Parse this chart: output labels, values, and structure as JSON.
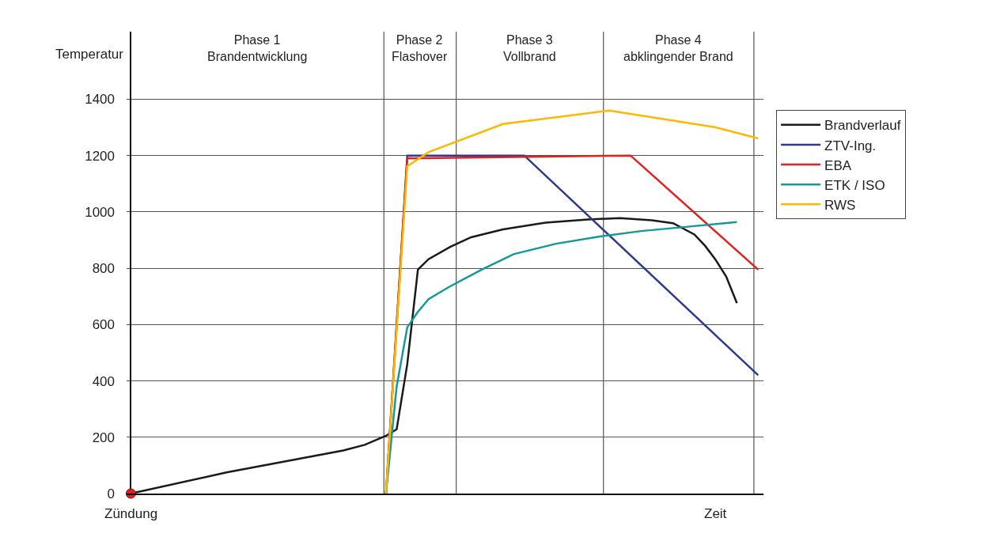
{
  "chart_data": {
    "type": "line",
    "ylabel": "Temperatur",
    "xlabel": "Zeit",
    "annotations": [
      "Phase 1\nBrandentwicklung",
      "Phase 2\nFlashover",
      "Phase 3\nVollbrand",
      "Phase 4\nabklingender Brand",
      "Zündung"
    ],
    "categories": [
      null,
      null,
      null,
      null,
      null,
      null,
      null,
      null,
      null,
      null,
      null,
      null,
      null,
      null,
      null,
      null,
      null,
      null,
      null,
      null,
      null,
      null,
      null,
      null,
      null,
      null,
      null,
      null,
      null,
      null,
      null,
      null,
      null,
      null,
      null,
      null,
      null,
      null,
      null,
      null,
      null,
      null,
      null,
      null,
      null,
      null,
      null,
      null,
      null,
      null,
      null,
      null,
      null,
      null,
      null,
      null,
      null,
      null,
      null,
      null
    ],
    "ylim": [
      0,
      1640
    ],
    "yticks": [
      0,
      200,
      400,
      600,
      800,
      1000,
      1200,
      1400
    ],
    "tick_labels": "y",
    "grid": "y",
    "legend": "right",
    "marker": "none",
    "line_style": "solid",
    "series": [
      {
        "name": "Brandverlauf",
        "color": "#1a1a1a",
        "values": [
          0,
          null,
          null,
          null,
          null,
          null,
          null,
          null,
          null,
          75,
          null,
          null,
          null,
          null,
          null,
          null,
          null,
          null,
          null,
          null,
          153,
          null,
          173,
          null,
          205,
          228,
          460,
          795,
          832,
          null,
          875,
          null,
          910,
          null,
          null,
          938,
          null,
          null,
          null,
          962,
          null,
          null,
          null,
          973,
          null,
          null,
          978,
          null,
          null,
          970,
          null,
          960,
          null,
          920,
          880,
          830,
          770,
          676,
          null,
          null
        ]
      },
      {
        "name": "ZTV-Ing.",
        "color": "#2e3a8c",
        "values": [
          null,
          null,
          null,
          null,
          null,
          null,
          null,
          null,
          null,
          null,
          null,
          null,
          null,
          null,
          null,
          null,
          null,
          null,
          null,
          null,
          null,
          null,
          null,
          null,
          0,
          null,
          1200,
          null,
          null,
          null,
          null,
          null,
          null,
          null,
          null,
          null,
          null,
          1200,
          null,
          null,
          null,
          null,
          null,
          null,
          null,
          null,
          null,
          null,
          null,
          null,
          null,
          null,
          null,
          null,
          null,
          null,
          null,
          null,
          null,
          420
        ]
      },
      {
        "name": "EBA",
        "color": "#e3201b",
        "values": [
          null,
          null,
          null,
          null,
          null,
          null,
          null,
          null,
          null,
          null,
          null,
          null,
          null,
          null,
          null,
          null,
          null,
          null,
          null,
          null,
          null,
          null,
          null,
          null,
          0,
          null,
          1190,
          null,
          null,
          null,
          null,
          null,
          null,
          null,
          null,
          null,
          null,
          null,
          null,
          null,
          null,
          null,
          null,
          null,
          null,
          null,
          null,
          1200,
          null,
          null,
          null,
          null,
          null,
          null,
          null,
          null,
          null,
          null,
          null,
          795
        ]
      },
      {
        "name": "ETK / ISO",
        "color": "#13999a",
        "values": [
          null,
          null,
          null,
          null,
          null,
          null,
          null,
          null,
          null,
          null,
          null,
          null,
          null,
          null,
          null,
          null,
          null,
          null,
          null,
          null,
          null,
          null,
          null,
          null,
          0,
          380,
          590,
          645,
          690,
          null,
          735,
          null,
          null,
          795,
          null,
          null,
          850,
          null,
          null,
          null,
          887,
          null,
          null,
          null,
          912,
          null,
          null,
          null,
          932,
          null,
          null,
          null,
          946,
          null,
          null,
          null,
          null,
          964,
          null,
          null
        ]
      },
      {
        "name": "RWS",
        "color": "#fbb900",
        "values": [
          null,
          null,
          null,
          null,
          null,
          null,
          null,
          null,
          null,
          null,
          null,
          null,
          null,
          null,
          null,
          null,
          null,
          null,
          null,
          null,
          null,
          null,
          null,
          null,
          0,
          null,
          1162,
          null,
          1212,
          null,
          null,
          null,
          null,
          null,
          null,
          1312,
          null,
          null,
          null,
          null,
          null,
          null,
          null,
          null,
          null,
          1360,
          null,
          null,
          null,
          null,
          null,
          null,
          null,
          null,
          null,
          1300,
          null,
          null,
          null,
          1261
        ]
      },
      {
        "type": "scatter",
        "marker": "circle",
        "color": "#e02020",
        "values": [
          0,
          null,
          null,
          null,
          null,
          null,
          null,
          null,
          null,
          null,
          null,
          null,
          null,
          null,
          null,
          null,
          null,
          null,
          null,
          null,
          null,
          null,
          null,
          null,
          null,
          null,
          null,
          null,
          null,
          null,
          null,
          null,
          null,
          null,
          null,
          null,
          null,
          null,
          null,
          null,
          null,
          null,
          null,
          null,
          null,
          null,
          null,
          null,
          null,
          null,
          null,
          null,
          null,
          null,
          null,
          null,
          null,
          null,
          null,
          null
        ]
      }
    ]
  }
}
